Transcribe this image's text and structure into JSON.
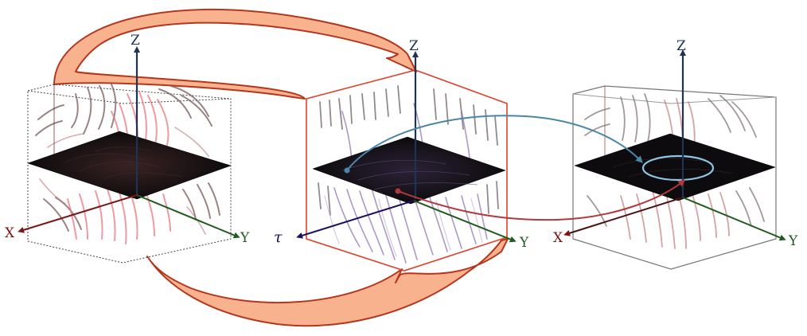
{
  "colors": {
    "axis_x": "#7a1616",
    "axis_y": "#1f5a1f",
    "axis_z": "#1f3454",
    "axis_tau": "#1a1060",
    "plane": "#0d0b0d",
    "big_arrow_fill": "#f8b38e",
    "big_arrow_stroke": "#b5361d",
    "box_middle": "#e0402a",
    "streak_left": "#e8707a",
    "streak_middle": "#8b6eae",
    "streak_right": "#c67c80",
    "blue_path": "#4b86a6",
    "red_path": "#b0393d"
  },
  "panels": [
    {
      "name": "left",
      "labels": {
        "z": "Z",
        "x": "X",
        "y": "Y"
      }
    },
    {
      "name": "middle",
      "labels": {
        "z": "Z",
        "tau": "τ",
        "y": "Y"
      }
    },
    {
      "name": "right",
      "labels": {
        "z": "Z",
        "x": "X",
        "y": "Y"
      }
    }
  ]
}
